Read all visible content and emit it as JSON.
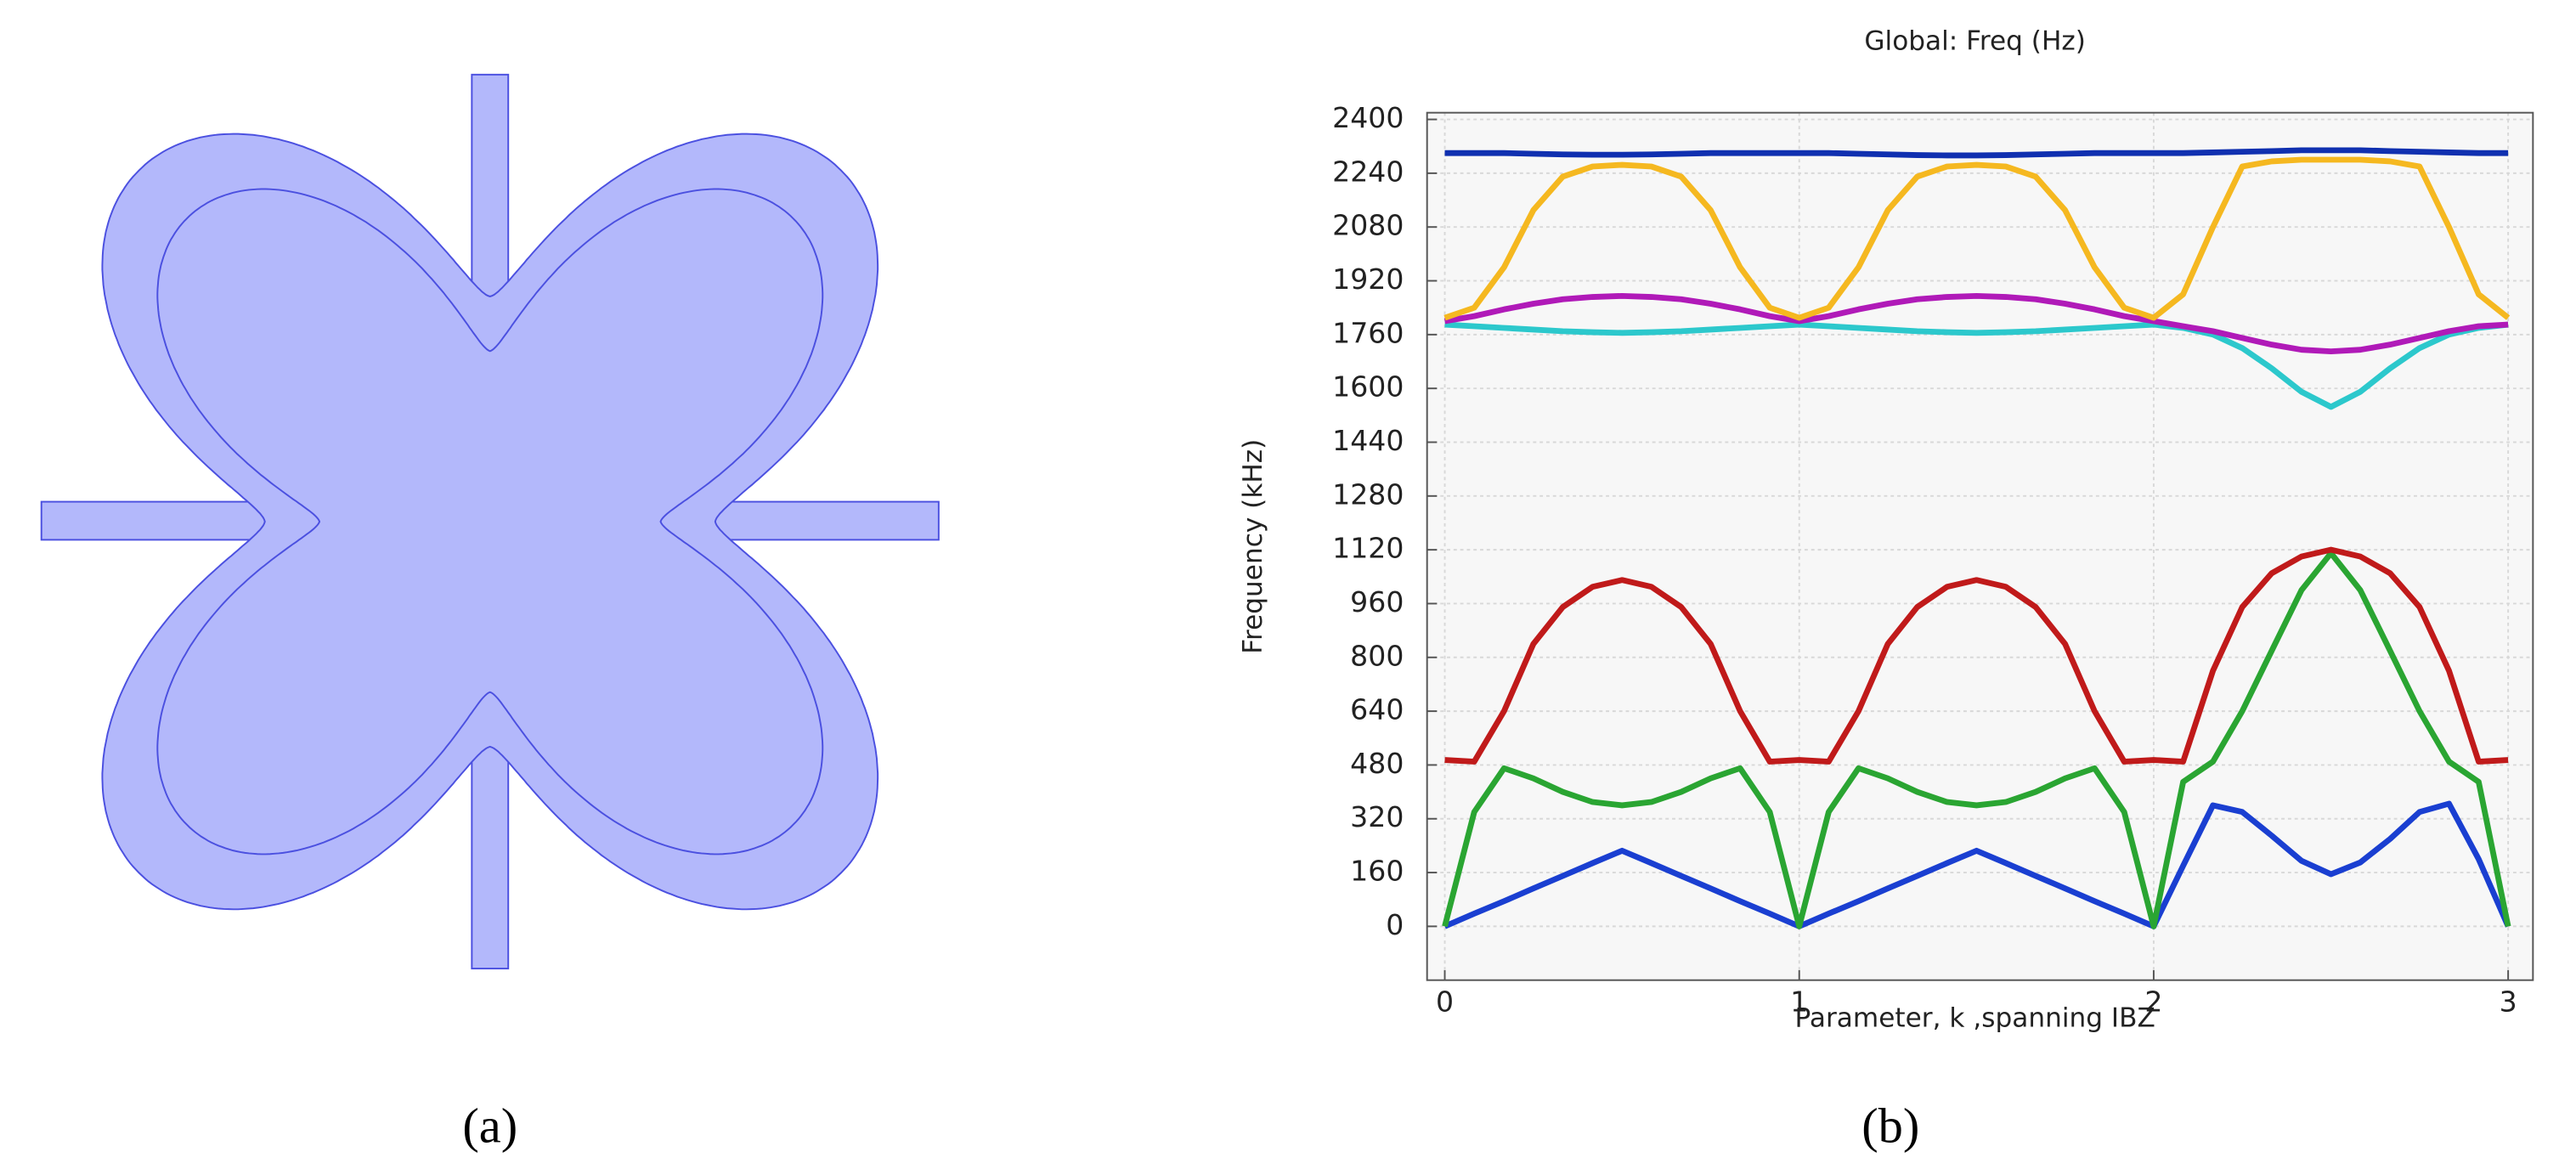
{
  "panel_labels": {
    "a": "(a)",
    "b": "(b)"
  },
  "chart_data": {
    "type": "line",
    "title": "Global: Freq (Hz)",
    "xlabel": "Parameter, k ,spanning IBZ",
    "ylabel": "Frequency (kHz)",
    "x": [
      0,
      0.083,
      0.167,
      0.25,
      0.333,
      0.417,
      0.5,
      0.583,
      0.667,
      0.75,
      0.833,
      0.917,
      1,
      1.083,
      1.167,
      1.25,
      1.333,
      1.417,
      1.5,
      1.583,
      1.667,
      1.75,
      1.833,
      1.917,
      2,
      2.083,
      2.167,
      2.25,
      2.333,
      2.417,
      2.5,
      2.583,
      2.667,
      2.75,
      2.833,
      2.917,
      3
    ],
    "xlim": [
      -0.05,
      3.07
    ],
    "ylim": [
      -160,
      2420
    ],
    "xticks": [
      0,
      1,
      2,
      3
    ],
    "yticks": [
      0,
      160,
      320,
      480,
      640,
      800,
      960,
      1120,
      1280,
      1440,
      1600,
      1760,
      1920,
      2080,
      2240,
      2400
    ],
    "grid": true,
    "series": [
      {
        "color": "#1a3fd1",
        "values": [
          0,
          38,
          75,
          113,
          150,
          188,
          225,
          188,
          150,
          113,
          75,
          38,
          0,
          38,
          75,
          113,
          150,
          188,
          225,
          188,
          150,
          113,
          75,
          38,
          0,
          180,
          360,
          340,
          270,
          195,
          155,
          190,
          260,
          340,
          365,
          200,
          0
        ]
      },
      {
        "color": "#2aa532",
        "values": [
          0,
          340,
          470,
          440,
          400,
          370,
          360,
          370,
          400,
          440,
          470,
          340,
          0,
          340,
          470,
          440,
          400,
          370,
          360,
          370,
          400,
          440,
          470,
          340,
          0,
          430,
          490,
          640,
          820,
          1000,
          1110,
          1000,
          820,
          640,
          490,
          430,
          0
        ]
      },
      {
        "color": "#c01a1a",
        "values": [
          495,
          490,
          640,
          840,
          950,
          1010,
          1030,
          1010,
          950,
          840,
          640,
          490,
          495,
          490,
          640,
          840,
          950,
          1010,
          1030,
          1010,
          950,
          840,
          640,
          490,
          495,
          490,
          760,
          950,
          1050,
          1100,
          1120,
          1100,
          1050,
          950,
          760,
          490,
          495
        ]
      },
      {
        "color": "#2cc8cc",
        "values": [
          1790,
          1785,
          1780,
          1775,
          1770,
          1767,
          1765,
          1767,
          1770,
          1775,
          1780,
          1785,
          1790,
          1785,
          1780,
          1775,
          1770,
          1767,
          1765,
          1767,
          1770,
          1775,
          1780,
          1785,
          1790,
          1780,
          1760,
          1720,
          1660,
          1590,
          1545,
          1590,
          1660,
          1720,
          1760,
          1780,
          1790
        ]
      },
      {
        "color": "#b01ab8",
        "values": [
          1800,
          1815,
          1835,
          1852,
          1865,
          1872,
          1875,
          1872,
          1865,
          1852,
          1835,
          1815,
          1800,
          1815,
          1835,
          1852,
          1865,
          1872,
          1875,
          1872,
          1865,
          1852,
          1835,
          1815,
          1800,
          1785,
          1770,
          1750,
          1730,
          1715,
          1710,
          1715,
          1730,
          1750,
          1770,
          1785,
          1790
        ]
      },
      {
        "color": "#f5b820",
        "values": [
          1810,
          1840,
          1960,
          2130,
          2230,
          2260,
          2265,
          2260,
          2230,
          2130,
          1960,
          1840,
          1810,
          1840,
          1960,
          2130,
          2230,
          2260,
          2265,
          2260,
          2230,
          2130,
          1960,
          1840,
          1810,
          1880,
          2080,
          2260,
          2275,
          2280,
          2280,
          2280,
          2275,
          2260,
          2080,
          1880,
          1810
        ]
      },
      {
        "color": "#1030b0",
        "values": [
          2300,
          2300,
          2300,
          2298,
          2296,
          2295,
          2295,
          2296,
          2298,
          2300,
          2300,
          2300,
          2300,
          2300,
          2298,
          2296,
          2294,
          2293,
          2293,
          2294,
          2296,
          2298,
          2300,
          2300,
          2300,
          2300,
          2302,
          2304,
          2306,
          2308,
          2308,
          2308,
          2306,
          2304,
          2302,
          2300,
          2300
        ]
      }
    ]
  }
}
